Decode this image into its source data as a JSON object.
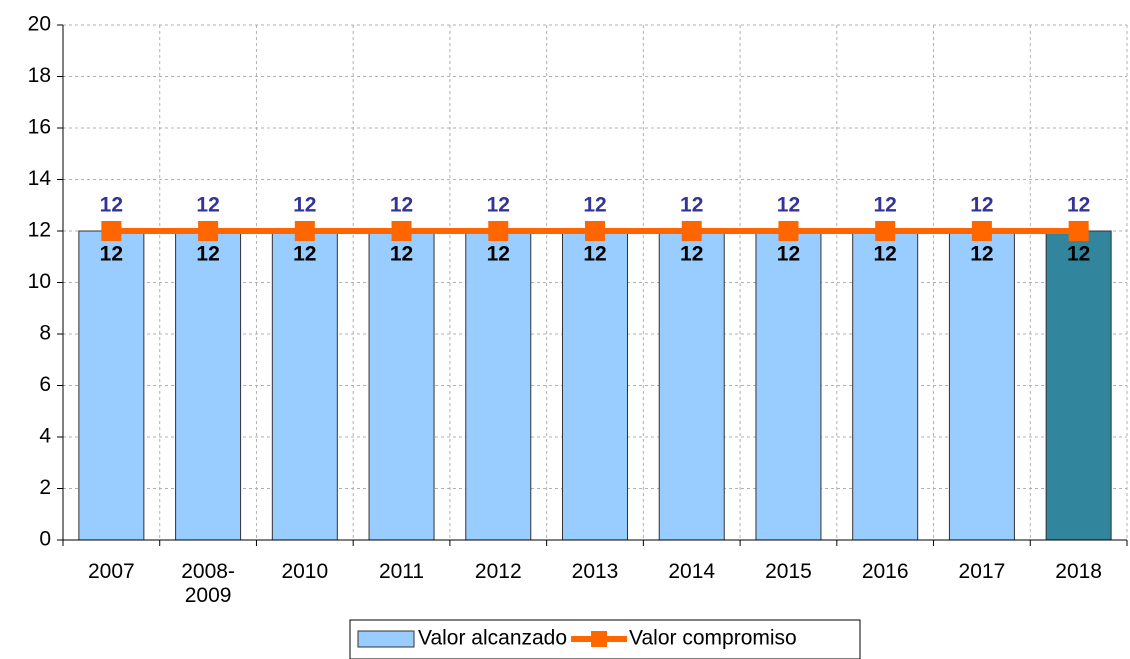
{
  "chart_data": {
    "type": "bar-line",
    "categories": [
      "2007",
      "2008-\n2009",
      "2010",
      "2011",
      "2012",
      "2013",
      "2014",
      "2015",
      "2016",
      "2017",
      "2018"
    ],
    "series": [
      {
        "name": "Valor alcanzado",
        "type": "bar",
        "color": "#99ccff",
        "colors": [
          "#99ccff",
          "#99ccff",
          "#99ccff",
          "#99ccff",
          "#99ccff",
          "#99ccff",
          "#99ccff",
          "#99ccff",
          "#99ccff",
          "#99ccff",
          "#31859c"
        ],
        "values": [
          12,
          12,
          12,
          12,
          12,
          12,
          12,
          12,
          12,
          12,
          12
        ]
      },
      {
        "name": "Valor compromiso",
        "type": "line",
        "color": "#ff6600",
        "values": [
          12,
          12,
          12,
          12,
          12,
          12,
          12,
          12,
          12,
          12,
          12
        ]
      }
    ],
    "ylim": [
      0,
      20
    ],
    "yticks": [
      0,
      2,
      4,
      6,
      8,
      10,
      12,
      14,
      16,
      18,
      20
    ],
    "grid": true,
    "legend": "bottom"
  }
}
